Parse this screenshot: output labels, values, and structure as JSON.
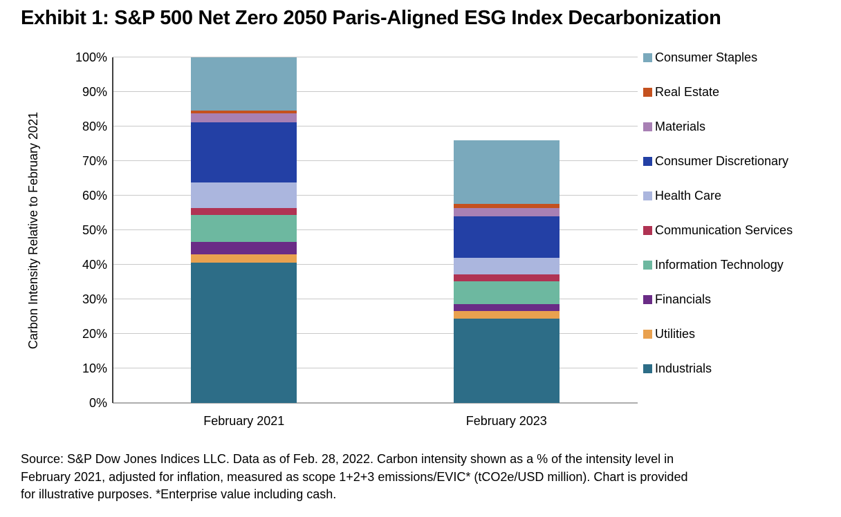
{
  "title": "Exhibit 1: S&P 500 Net Zero 2050 Paris-Aligned ESG Index Decarbonization",
  "source": {
    "lines": [
      "Source: S&P Dow Jones Indices LLC. Data as of Feb. 28, 2022. Carbon intensity shown as a % of the intensity level in",
      "February 2021, adjusted for inflation, measured as scope 1+2+3 emissions/EVIC* (tCO2e/USD million). Chart is provided",
      "for illustrative purposes. *Enterprise value including cash."
    ]
  },
  "colors": {
    "gridline": "#C9C9C9",
    "x_axis_line": "#ADADAD",
    "y_axis_line": "#3F3F3F",
    "text": "#000000",
    "background": "#FFFFFF"
  },
  "chart_data": {
    "type": "bar",
    "stacked": true,
    "title": "Exhibit 1: S&P 500 Net Zero 2050 Paris-Aligned ESG Index Decarbonization",
    "categories": [
      "February 2021",
      "February 2023"
    ],
    "xlabel": "",
    "ylabel": "Carbon Intensity Relative to February 2021",
    "ylim": [
      0,
      100
    ],
    "y_ticks": [
      "0%",
      "10%",
      "20%",
      "30%",
      "40%",
      "50%",
      "60%",
      "70%",
      "80%",
      "90%",
      "100%"
    ],
    "grid": "horizontal",
    "legend_position": "right",
    "series": [
      {
        "name": "Consumer Staples",
        "color": "#7AA9BC",
        "values": [
          15.4,
          18.4
        ]
      },
      {
        "name": "Real Estate",
        "color": "#C4511F",
        "values": [
          0.8,
          1.2
        ]
      },
      {
        "name": "Materials",
        "color": "#A880B4",
        "values": [
          2.5,
          2.5
        ]
      },
      {
        "name": "Consumer Discretionary",
        "color": "#2340A5",
        "values": [
          17.4,
          12.0
        ]
      },
      {
        "name": "Health Care",
        "color": "#ABB6DE",
        "values": [
          7.4,
          4.7
        ]
      },
      {
        "name": "Communication Services",
        "color": "#B03353",
        "values": [
          2.1,
          2.0
        ]
      },
      {
        "name": "Information Technology",
        "color": "#6DB8A0",
        "values": [
          7.7,
          6.6
        ]
      },
      {
        "name": "Financials",
        "color": "#6A2C86",
        "values": [
          3.6,
          2.0
        ]
      },
      {
        "name": "Utilities",
        "color": "#E9A14F",
        "values": [
          2.4,
          2.2
        ]
      },
      {
        "name": "Industrials",
        "color": "#2D6D87",
        "values": [
          40.7,
          24.5
        ]
      }
    ],
    "bar_totals": [
      100.0,
      76.1
    ]
  }
}
